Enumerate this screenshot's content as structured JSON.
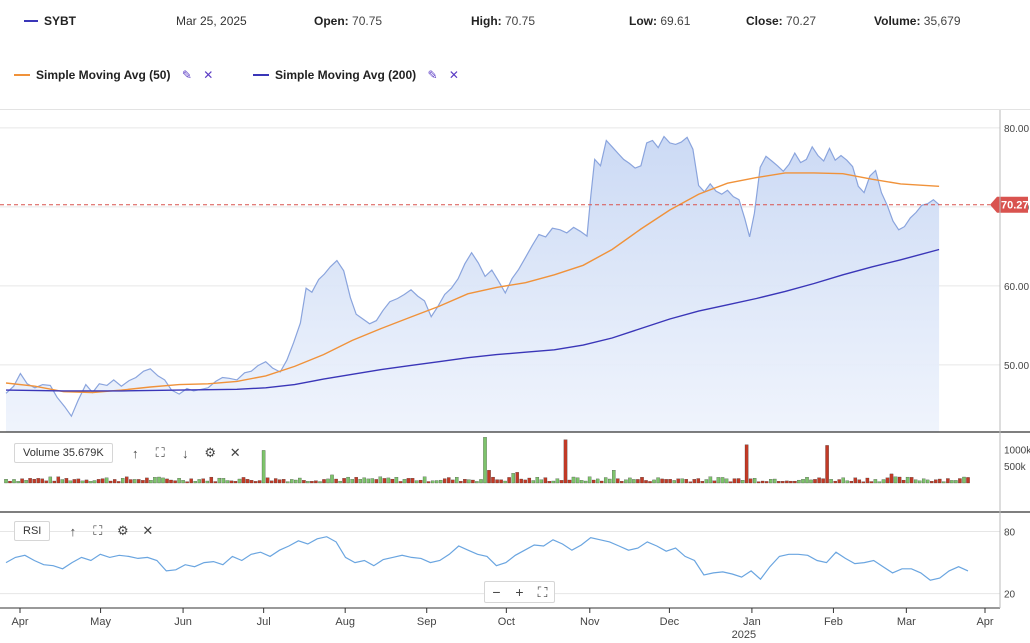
{
  "header": {
    "symbol": "SYBT",
    "symbol_color": "#3a36b8",
    "date": "Mar 25, 2025",
    "open_label": "Open:",
    "open_value": "70.75",
    "high_label": "High:",
    "high_value": "70.75",
    "low_label": "Low:",
    "low_value": "69.61",
    "close_label": "Close:",
    "close_value": "70.27",
    "volume_label": "Volume:",
    "volume_value": "35,679"
  },
  "legend": {
    "sma50_label": "Simple Moving Avg (50)",
    "sma50_color": "#f0923a",
    "sma200_label": "Simple Moving Avg (200)",
    "sma200_color": "#3a36b8",
    "edit_icon": "pencil-icon",
    "remove_icon": "close-icon"
  },
  "volume_pane": {
    "label": "Volume 35.679K"
  },
  "rsi_pane": {
    "label": "RSI"
  },
  "zoom": {
    "minus": "−",
    "plus": "+",
    "fit": "⛶"
  },
  "chart_data": {
    "type": "area",
    "x_range": [
      "2024-03-25",
      "2025-03-25"
    ],
    "price_axis": {
      "ticks": [
        "50.00",
        "60.00",
        "70.00"
      ],
      "range": [
        41.5,
        81.5
      ]
    },
    "last_price": "70.27",
    "last_price_color": "#d9534f",
    "price_color": "#8aa4dd",
    "x_ticks": [
      {
        "label": "Apr",
        "t": 0.018
      },
      {
        "label": "May",
        "t": 0.102
      },
      {
        "label": "Jun",
        "t": 0.188
      },
      {
        "label": "Jul",
        "t": 0.272
      },
      {
        "label": "Aug",
        "t": 0.357
      },
      {
        "label": "Sep",
        "t": 0.442
      },
      {
        "label": "Oct",
        "t": 0.525
      },
      {
        "label": "Nov",
        "t": 0.612
      },
      {
        "label": "Dec",
        "t": 0.695
      },
      {
        "label": "Jan",
        "t": 0.781
      },
      {
        "label": "Feb",
        "t": 0.866
      },
      {
        "label": "Mar",
        "t": 0.942
      },
      {
        "label": "Apr",
        "t": 1.024
      }
    ],
    "year_label": "2025",
    "price": [
      [
        0.0,
        46.4
      ],
      [
        0.008,
        47.3
      ],
      [
        0.015,
        48.9
      ],
      [
        0.022,
        47.6
      ],
      [
        0.03,
        47.1
      ],
      [
        0.038,
        47.5
      ],
      [
        0.046,
        47.4
      ],
      [
        0.053,
        45.9
      ],
      [
        0.061,
        44.7
      ],
      [
        0.068,
        43.5
      ],
      [
        0.075,
        45.5
      ],
      [
        0.083,
        47.5
      ],
      [
        0.09,
        46.5
      ],
      [
        0.097,
        47.6
      ],
      [
        0.105,
        47.4
      ],
      [
        0.112,
        48.1
      ],
      [
        0.12,
        47.3
      ],
      [
        0.128,
        48.0
      ],
      [
        0.135,
        48.4
      ],
      [
        0.143,
        49.2
      ],
      [
        0.15,
        49.5
      ],
      [
        0.158,
        48.6
      ],
      [
        0.165,
        48.1
      ],
      [
        0.172,
        46.8
      ],
      [
        0.18,
        46.3
      ],
      [
        0.188,
        47.0
      ],
      [
        0.195,
        46.7
      ],
      [
        0.203,
        46.9
      ],
      [
        0.21,
        47.1
      ],
      [
        0.218,
        47.9
      ],
      [
        0.225,
        48.4
      ],
      [
        0.232,
        48.3
      ],
      [
        0.24,
        48.1
      ],
      [
        0.248,
        49.0
      ],
      [
        0.255,
        49.2
      ],
      [
        0.262,
        49.9
      ],
      [
        0.27,
        50.4
      ],
      [
        0.277,
        49.6
      ],
      [
        0.285,
        49.1
      ],
      [
        0.292,
        50.6
      ],
      [
        0.299,
        52.8
      ],
      [
        0.306,
        55.3
      ],
      [
        0.312,
        59.7
      ],
      [
        0.318,
        59.2
      ],
      [
        0.325,
        60.8
      ],
      [
        0.331,
        61.5
      ],
      [
        0.337,
        62.4
      ],
      [
        0.344,
        63.2
      ],
      [
        0.351,
        61.9
      ],
      [
        0.358,
        58.5
      ],
      [
        0.364,
        56.4
      ],
      [
        0.371,
        55.8
      ],
      [
        0.378,
        55.2
      ],
      [
        0.385,
        55.6
      ],
      [
        0.392,
        56.9
      ],
      [
        0.399,
        58.0
      ],
      [
        0.407,
        58.4
      ],
      [
        0.414,
        58.9
      ],
      [
        0.421,
        59.5
      ],
      [
        0.428,
        58.7
      ],
      [
        0.435,
        58.1
      ],
      [
        0.442,
        56.1
      ],
      [
        0.449,
        57.4
      ],
      [
        0.456,
        58.9
      ],
      [
        0.463,
        59.7
      ],
      [
        0.47,
        60.9
      ],
      [
        0.477,
        62.8
      ],
      [
        0.484,
        64.2
      ],
      [
        0.491,
        62.9
      ],
      [
        0.498,
        61.2
      ],
      [
        0.505,
        62.0
      ],
      [
        0.512,
        60.6
      ],
      [
        0.519,
        59.1
      ],
      [
        0.526,
        60.9
      ],
      [
        0.533,
        62.1
      ],
      [
        0.54,
        63.6
      ],
      [
        0.547,
        65.1
      ],
      [
        0.554,
        66.5
      ],
      [
        0.561,
        66.2
      ],
      [
        0.568,
        67.3
      ],
      [
        0.576,
        67.1
      ],
      [
        0.583,
        66.7
      ],
      [
        0.59,
        67.4
      ],
      [
        0.597,
        66.9
      ],
      [
        0.604,
        66.3
      ],
      [
        0.608,
        71.5
      ],
      [
        0.612,
        76.0
      ],
      [
        0.618,
        75.2
      ],
      [
        0.624,
        78.4
      ],
      [
        0.63,
        77.6
      ],
      [
        0.636,
        76.8
      ],
      [
        0.642,
        76.0
      ],
      [
        0.648,
        75.5
      ],
      [
        0.654,
        74.9
      ],
      [
        0.66,
        75.2
      ],
      [
        0.666,
        78.1
      ],
      [
        0.672,
        78.4
      ],
      [
        0.678,
        77.5
      ],
      [
        0.684,
        78.9
      ],
      [
        0.69,
        78.1
      ],
      [
        0.696,
        77.9
      ],
      [
        0.702,
        78.2
      ],
      [
        0.708,
        78.8
      ],
      [
        0.714,
        77.3
      ],
      [
        0.72,
        72.7
      ],
      [
        0.726,
        71.9
      ],
      [
        0.732,
        72.9
      ],
      [
        0.738,
        72.0
      ],
      [
        0.744,
        71.6
      ],
      [
        0.75,
        72.1
      ],
      [
        0.756,
        71.3
      ],
      [
        0.762,
        70.9
      ],
      [
        0.768,
        68.5
      ],
      [
        0.773,
        66.2
      ],
      [
        0.778,
        69.2
      ],
      [
        0.784,
        75.0
      ],
      [
        0.79,
        76.4
      ],
      [
        0.796,
        75.8
      ],
      [
        0.802,
        75.2
      ],
      [
        0.808,
        74.5
      ],
      [
        0.814,
        75.4
      ],
      [
        0.82,
        76.8
      ],
      [
        0.826,
        75.6
      ],
      [
        0.832,
        76.0
      ],
      [
        0.838,
        77.6
      ],
      [
        0.844,
        76.5
      ],
      [
        0.85,
        75.8
      ],
      [
        0.856,
        77.4
      ],
      [
        0.862,
        75.9
      ],
      [
        0.868,
        76.5
      ],
      [
        0.874,
        75.9
      ],
      [
        0.88,
        75.1
      ],
      [
        0.886,
        72.6
      ],
      [
        0.892,
        71.8
      ],
      [
        0.898,
        73.9
      ],
      [
        0.904,
        74.6
      ],
      [
        0.91,
        71.8
      ],
      [
        0.916,
        70.2
      ],
      [
        0.922,
        68.2
      ],
      [
        0.928,
        67.1
      ],
      [
        0.934,
        67.5
      ],
      [
        0.94,
        68.6
      ],
      [
        0.946,
        69.3
      ],
      [
        0.952,
        70.2
      ],
      [
        0.958,
        70.4
      ],
      [
        0.964,
        70.9
      ],
      [
        0.97,
        70.27
      ]
    ],
    "sma50": [
      [
        0.0,
        47.7
      ],
      [
        0.03,
        47.3
      ],
      [
        0.06,
        46.6
      ],
      [
        0.09,
        46.5
      ],
      [
        0.12,
        46.8
      ],
      [
        0.15,
        47.2
      ],
      [
        0.18,
        47.5
      ],
      [
        0.21,
        47.6
      ],
      [
        0.24,
        47.9
      ],
      [
        0.27,
        48.6
      ],
      [
        0.3,
        49.8
      ],
      [
        0.33,
        51.3
      ],
      [
        0.36,
        53.1
      ],
      [
        0.39,
        54.6
      ],
      [
        0.42,
        56.0
      ],
      [
        0.45,
        57.4
      ],
      [
        0.48,
        59.0
      ],
      [
        0.51,
        59.8
      ],
      [
        0.54,
        60.4
      ],
      [
        0.57,
        61.4
      ],
      [
        0.6,
        62.6
      ],
      [
        0.63,
        64.6
      ],
      [
        0.66,
        67.2
      ],
      [
        0.69,
        69.6
      ],
      [
        0.72,
        71.6
      ],
      [
        0.75,
        73.0
      ],
      [
        0.78,
        73.7
      ],
      [
        0.81,
        74.3
      ],
      [
        0.84,
        74.3
      ],
      [
        0.87,
        74.2
      ],
      [
        0.9,
        73.5
      ],
      [
        0.93,
        72.9
      ],
      [
        0.97,
        72.6
      ]
    ],
    "sma200": [
      [
        0.0,
        46.8
      ],
      [
        0.06,
        46.7
      ],
      [
        0.12,
        46.7
      ],
      [
        0.18,
        46.8
      ],
      [
        0.24,
        46.9
      ],
      [
        0.27,
        47.1
      ],
      [
        0.3,
        47.5
      ],
      [
        0.33,
        48.2
      ],
      [
        0.36,
        48.8
      ],
      [
        0.39,
        49.4
      ],
      [
        0.42,
        49.9
      ],
      [
        0.45,
        50.4
      ],
      [
        0.48,
        50.9
      ],
      [
        0.51,
        51.3
      ],
      [
        0.54,
        51.6
      ],
      [
        0.57,
        51.9
      ],
      [
        0.6,
        52.5
      ],
      [
        0.63,
        53.4
      ],
      [
        0.66,
        54.6
      ],
      [
        0.69,
        55.8
      ],
      [
        0.72,
        56.8
      ],
      [
        0.75,
        57.6
      ],
      [
        0.78,
        58.4
      ],
      [
        0.81,
        59.3
      ],
      [
        0.84,
        60.3
      ],
      [
        0.87,
        61.4
      ],
      [
        0.9,
        62.4
      ],
      [
        0.93,
        63.3
      ],
      [
        0.97,
        64.6
      ]
    ],
    "volume_axis": {
      "ticks": [
        "1000k",
        "500k"
      ],
      "range": [
        0,
        1400
      ]
    },
    "volume_spikes": [
      [
        0.266,
        970,
        "up"
      ],
      [
        0.496,
        1360,
        "up"
      ],
      [
        0.583,
        1290,
        "down"
      ],
      [
        0.77,
        1140,
        "down"
      ],
      [
        0.854,
        1120,
        "down"
      ],
      [
        0.5,
        380,
        "down"
      ],
      [
        0.531,
        320,
        "down"
      ],
      [
        0.527,
        290,
        "up"
      ],
      [
        0.338,
        240,
        "up"
      ],
      [
        0.632,
        380,
        "up"
      ],
      [
        0.92,
        270,
        "down"
      ],
      [
        0.994,
        180,
        "up"
      ]
    ],
    "volume_up_color": "#7dc36b",
    "volume_down_color": "#c23a26",
    "rsi_axis": {
      "ticks": [
        "80",
        "20"
      ],
      "range": [
        10,
        95
      ]
    },
    "rsi": [
      [
        0.0,
        50
      ],
      [
        0.01,
        55
      ],
      [
        0.02,
        57
      ],
      [
        0.03,
        52
      ],
      [
        0.04,
        48
      ],
      [
        0.05,
        47
      ],
      [
        0.06,
        44
      ],
      [
        0.07,
        50
      ],
      [
        0.08,
        55
      ],
      [
        0.09,
        52
      ],
      [
        0.1,
        58
      ],
      [
        0.11,
        55
      ],
      [
        0.12,
        57
      ],
      [
        0.13,
        56
      ],
      [
        0.14,
        54
      ],
      [
        0.15,
        55
      ],
      [
        0.16,
        52
      ],
      [
        0.17,
        42
      ],
      [
        0.18,
        43
      ],
      [
        0.19,
        48
      ],
      [
        0.2,
        46
      ],
      [
        0.21,
        50
      ],
      [
        0.22,
        51
      ],
      [
        0.23,
        48
      ],
      [
        0.24,
        56
      ],
      [
        0.25,
        52
      ],
      [
        0.26,
        58
      ],
      [
        0.27,
        60
      ],
      [
        0.28,
        56
      ],
      [
        0.29,
        62
      ],
      [
        0.3,
        66
      ],
      [
        0.31,
        71
      ],
      [
        0.32,
        68
      ],
      [
        0.33,
        73
      ],
      [
        0.34,
        75
      ],
      [
        0.35,
        70
      ],
      [
        0.36,
        55
      ],
      [
        0.37,
        50
      ],
      [
        0.38,
        52
      ],
      [
        0.39,
        47
      ],
      [
        0.4,
        53
      ],
      [
        0.41,
        55
      ],
      [
        0.42,
        57
      ],
      [
        0.43,
        55
      ],
      [
        0.44,
        54
      ],
      [
        0.45,
        50
      ],
      [
        0.46,
        52
      ],
      [
        0.47,
        58
      ],
      [
        0.48,
        66
      ],
      [
        0.49,
        62
      ],
      [
        0.5,
        58
      ],
      [
        0.51,
        56
      ],
      [
        0.52,
        47
      ],
      [
        0.53,
        50
      ],
      [
        0.54,
        57
      ],
      [
        0.55,
        62
      ],
      [
        0.56,
        67
      ],
      [
        0.57,
        66
      ],
      [
        0.58,
        72
      ],
      [
        0.59,
        68
      ],
      [
        0.6,
        62
      ],
      [
        0.61,
        67
      ],
      [
        0.62,
        74
      ],
      [
        0.63,
        72
      ],
      [
        0.64,
        70
      ],
      [
        0.65,
        66
      ],
      [
        0.66,
        62
      ],
      [
        0.67,
        64
      ],
      [
        0.68,
        70
      ],
      [
        0.69,
        66
      ],
      [
        0.7,
        61
      ],
      [
        0.71,
        64
      ],
      [
        0.72,
        56
      ],
      [
        0.73,
        52
      ],
      [
        0.74,
        38
      ],
      [
        0.75,
        40
      ],
      [
        0.76,
        41
      ],
      [
        0.77,
        39
      ],
      [
        0.78,
        36
      ],
      [
        0.79,
        42
      ],
      [
        0.8,
        34
      ],
      [
        0.81,
        46
      ],
      [
        0.82,
        56
      ],
      [
        0.83,
        58
      ],
      [
        0.84,
        58
      ],
      [
        0.85,
        57
      ],
      [
        0.86,
        52
      ],
      [
        0.87,
        50
      ],
      [
        0.88,
        60
      ],
      [
        0.89,
        54
      ],
      [
        0.9,
        49
      ],
      [
        0.91,
        50
      ],
      [
        0.92,
        52
      ],
      [
        0.93,
        46
      ],
      [
        0.94,
        40
      ],
      [
        0.95,
        44
      ],
      [
        0.96,
        44
      ],
      [
        0.97,
        40
      ],
      [
        0.98,
        33
      ],
      [
        0.99,
        35
      ],
      [
        1.0,
        42
      ],
      [
        1.01,
        46
      ],
      [
        1.02,
        42
      ]
    ],
    "rsi_color": "#6aa5e0"
  }
}
